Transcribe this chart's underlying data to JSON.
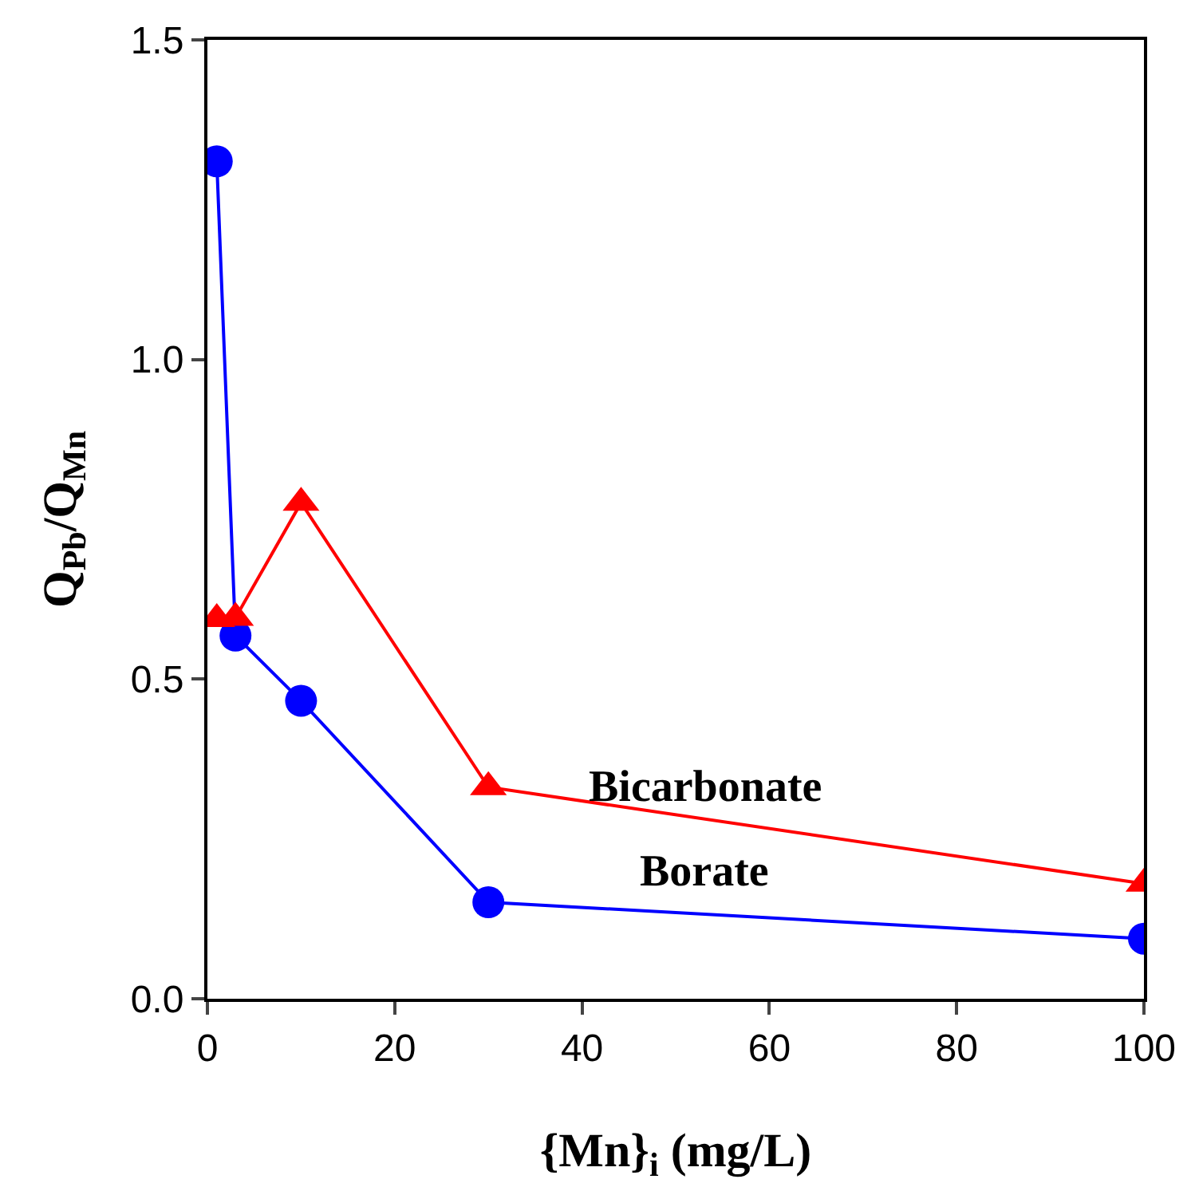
{
  "chart_data": {
    "type": "line",
    "xlabel": "{Mn}$_{i}$ (mg/L)",
    "ylabel": "Q$_{Pb}$/Q$_{Mn}$",
    "x": [
      1,
      3,
      10,
      30,
      100
    ],
    "series": [
      {
        "name": "Borate",
        "color": "#0000ff",
        "marker": "circle",
        "values": [
          1.31,
          0.568,
          0.466,
          0.151,
          0.094
        ]
      },
      {
        "name": "Bicarbonate",
        "color": "#ff0000",
        "marker": "triangle",
        "values": [
          0.594,
          0.596,
          0.776,
          0.331,
          0.18
        ]
      }
    ],
    "xlim": [
      0,
      100
    ],
    "xticks": [
      0,
      20,
      40,
      60,
      80,
      100
    ],
    "ylim": [
      0,
      1.5
    ],
    "yticks": [
      {
        "value": 0,
        "label": "0.0"
      },
      {
        "value": 0.5,
        "label": "0.5"
      },
      {
        "value": 1,
        "label": "1.0"
      },
      {
        "value": 1.5,
        "label": "1.5"
      }
    ],
    "grid": false,
    "legend": false,
    "line_style": "solid"
  }
}
